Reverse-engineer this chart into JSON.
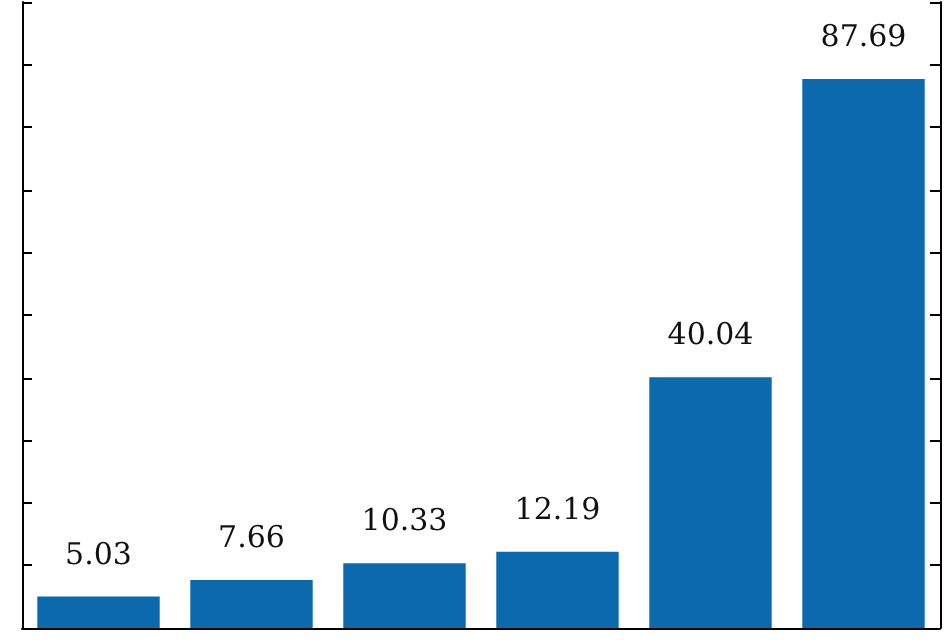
{
  "chart_data": {
    "type": "bar",
    "categories": [
      null,
      null,
      null,
      null,
      null,
      null
    ],
    "values": [
      5.03,
      7.66,
      10.33,
      12.19,
      40.04,
      87.69
    ],
    "color": "#0a6aad",
    "ylim": [
      0,
      100
    ],
    "yticks": [
      {
        "value": 0,
        "label": null
      },
      {
        "value": 10,
        "label": null
      },
      {
        "value": 20,
        "label": null
      },
      {
        "value": 30,
        "label": null
      },
      {
        "value": 40,
        "label": null
      },
      {
        "value": 50,
        "label": null
      },
      {
        "value": 60,
        "label": null
      },
      {
        "value": 70,
        "label": null
      },
      {
        "value": 80,
        "label": null
      },
      {
        "value": 90,
        "label": null
      },
      {
        "value": 100,
        "label": null
      }
    ],
    "data_labels": true,
    "grid": false
  }
}
